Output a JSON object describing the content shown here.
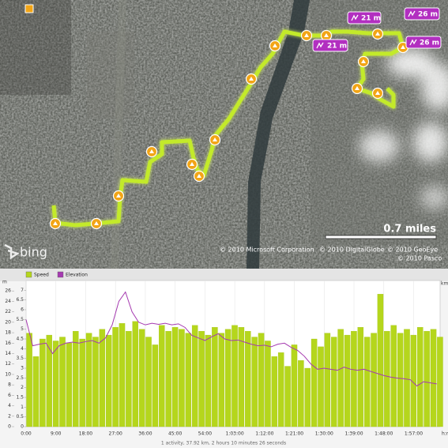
{
  "map": {
    "elevation_badges": [
      "21 m",
      "21 m",
      "26 m",
      "26 m"
    ],
    "scale_label": "0.7 miles",
    "attribution": [
      "© 2010 Microsoft Corporation",
      "© 2010 DigitalGlobe",
      "© 2010 GeoEye",
      "© 2010 Pasco"
    ],
    "logo": "bing"
  },
  "chart_data": {
    "type": "bar",
    "grid": true,
    "x": [
      0,
      2,
      4,
      6,
      8,
      10,
      12,
      14,
      16,
      18,
      20,
      22,
      24,
      26,
      28,
      30,
      32,
      34,
      36,
      38,
      40,
      42,
      44,
      46,
      48,
      50,
      52,
      54,
      56,
      58,
      60,
      62,
      64,
      66,
      68,
      70,
      72,
      74,
      76,
      78,
      80,
      82,
      84,
      86,
      88,
      90,
      92,
      94,
      96,
      98,
      100,
      102,
      104,
      106,
      108,
      110,
      112,
      114,
      116,
      118,
      120,
      122,
      124
    ],
    "xlim": [
      0,
      125
    ],
    "xticks": [
      {
        "value": 0,
        "label": "0:00"
      },
      {
        "value": 9,
        "label": "9:00"
      },
      {
        "value": 18,
        "label": "18:00"
      },
      {
        "value": 27,
        "label": "27:00"
      },
      {
        "value": 36,
        "label": "36:00"
      },
      {
        "value": 45,
        "label": "45:00"
      },
      {
        "value": 54,
        "label": "54:00"
      },
      {
        "value": 63,
        "label": "1:03:00"
      },
      {
        "value": 72,
        "label": "1:12:00"
      },
      {
        "value": 81,
        "label": "1:21:00"
      },
      {
        "value": 90,
        "label": "1:30:00"
      },
      {
        "value": 99,
        "label": "1:39:00"
      },
      {
        "value": 108,
        "label": "1:48:00"
      },
      {
        "value": 117,
        "label": "1:57:00"
      }
    ],
    "xlabel": "h:m",
    "ylabel": "m",
    "y2label": "km/h",
    "ylim": [
      0,
      28
    ],
    "yticks": [
      0,
      2,
      4,
      6,
      8,
      10,
      12,
      14,
      16,
      18,
      20,
      22,
      24,
      26
    ],
    "y2lim": [
      0,
      7.5
    ],
    "y2ticks": [
      0,
      0.5,
      1,
      1.5,
      2,
      2.5,
      3,
      3.5,
      4,
      4.5,
      5,
      5.5,
      6,
      6.5,
      7
    ],
    "series": [
      {
        "name": "Speed",
        "color": "#b5d61c",
        "axis": "y2",
        "values": [
          4.8,
          3.6,
          4.5,
          4.7,
          4.4,
          4.6,
          4.3,
          4.9,
          4.5,
          4.8,
          4.6,
          5.0,
          4.7,
          5.1,
          5.3,
          4.9,
          5.4,
          5.0,
          4.6,
          4.2,
          5.2,
          4.9,
          5.1,
          5.0,
          4.8,
          5.2,
          4.9,
          4.7,
          5.1,
          4.8,
          5.0,
          5.2,
          5.1,
          4.9,
          4.6,
          4.8,
          4.4,
          3.6,
          3.8,
          3.1,
          4.2,
          3.4,
          3.0,
          4.5,
          4.1,
          4.8,
          4.6,
          5.0,
          4.7,
          4.9,
          5.1,
          4.6,
          4.8,
          6.8,
          4.9,
          5.2,
          4.8,
          5.0,
          4.7,
          5.1,
          4.9,
          5.0,
          4.6
        ]
      },
      {
        "name": "Elevation",
        "color": "#a53ab0",
        "type": "line",
        "values": [
          20.5,
          15.5,
          15.8,
          16.0,
          14.0,
          15.5,
          16.0,
          16.2,
          16.0,
          16.3,
          16.5,
          16.0,
          17.0,
          19.5,
          24.0,
          25.8,
          22.0,
          20.0,
          19.5,
          19.8,
          19.6,
          19.8,
          19.5,
          19.7,
          19.0,
          17.5,
          17.0,
          16.5,
          17.2,
          17.8,
          16.8,
          16.5,
          16.6,
          16.2,
          15.8,
          15.5,
          15.6,
          15.3,
          15.8,
          16.0,
          15.2,
          14.6,
          13.5,
          12.0,
          11.0,
          11.2,
          11.0,
          10.8,
          11.4,
          11.0,
          10.8,
          11.0,
          10.6,
          10.2,
          9.8,
          9.5,
          9.3,
          9.2,
          9.0,
          7.8,
          8.6,
          8.4,
          8.2
        ]
      }
    ]
  },
  "footer": "1 activity, 37.92 km, 2 hours 10 minutes 26 seconds"
}
